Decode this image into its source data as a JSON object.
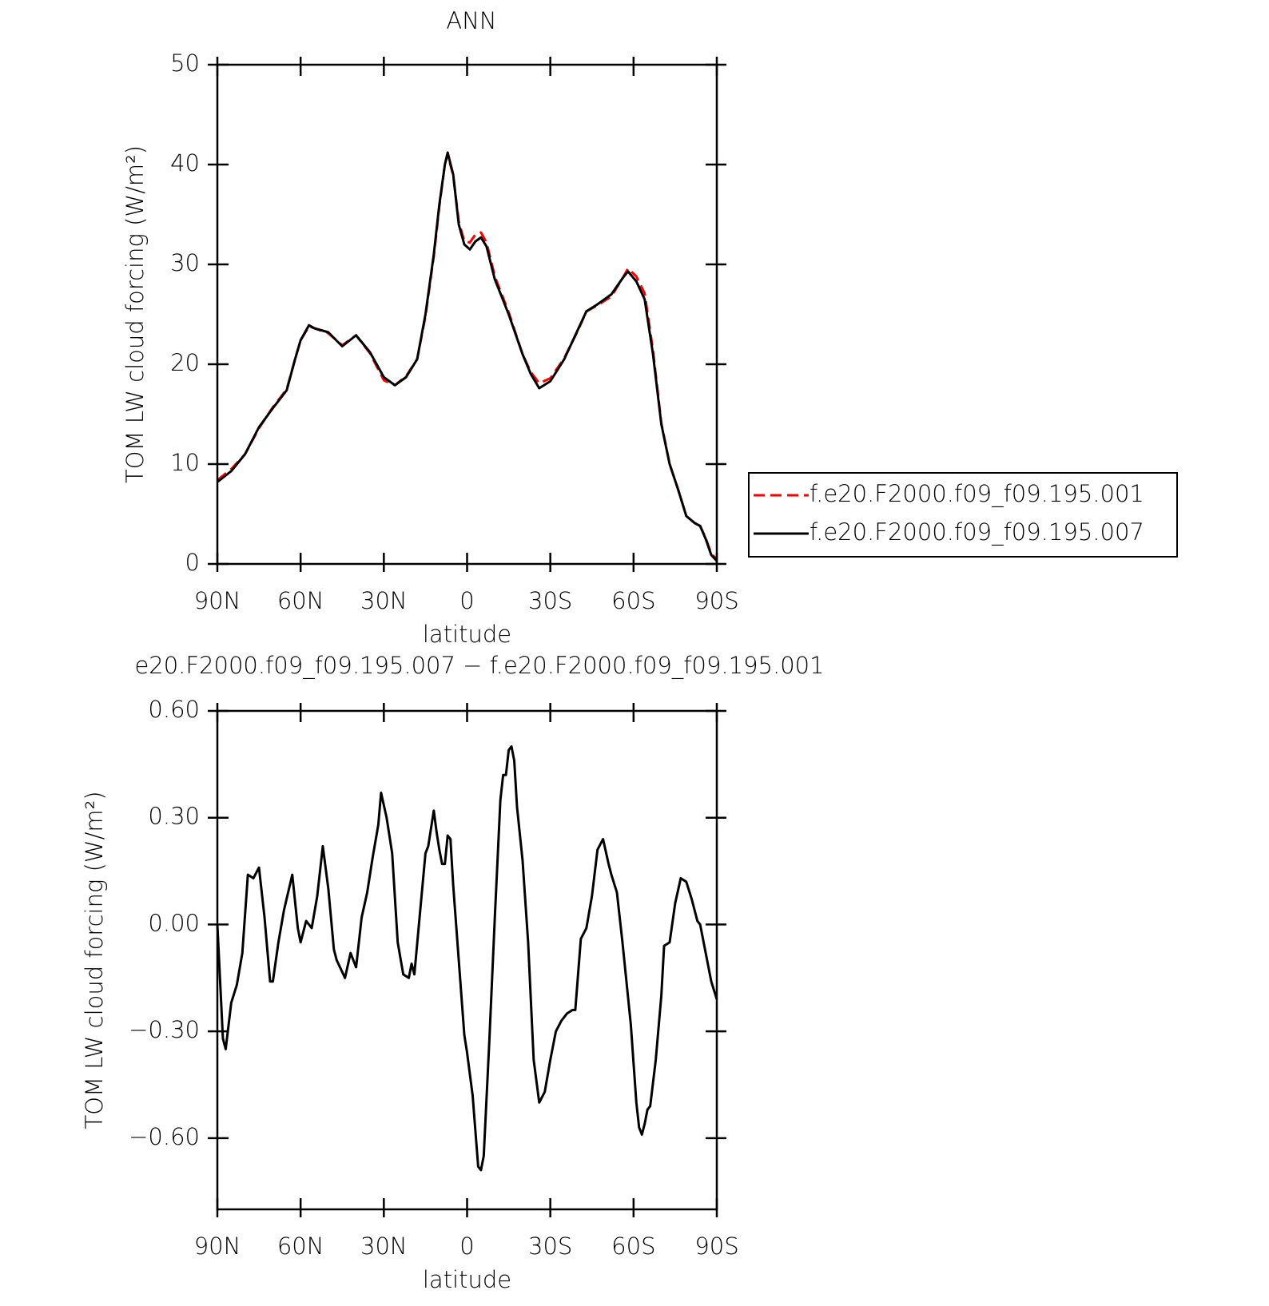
{
  "chart_data": [
    {
      "type": "line",
      "title": "ANN",
      "ylabel": "TOM LW cloud forcing (W/m²)",
      "xlabel": "latitude",
      "x": [
        90,
        85,
        80,
        75,
        70,
        65,
        62,
        60,
        57,
        55,
        50,
        45,
        40,
        35,
        30,
        26,
        22,
        18,
        15,
        12,
        10,
        8,
        7,
        5,
        3,
        1,
        -1,
        -3,
        -5,
        -7,
        -10,
        -15,
        -20,
        -23,
        -26,
        -30,
        -35,
        -40,
        -43,
        -47,
        -52,
        -56,
        -58,
        -61,
        -64,
        -67,
        -70,
        -73,
        -76,
        -79,
        -82,
        -84,
        -86,
        -88,
        -90
      ],
      "series": [
        {
          "name": "f.e20.F2000.f09_f09.195.001",
          "color": "#ff0000",
          "dashed": true,
          "values": [
            8.4,
            9.5,
            11.0,
            13.6,
            15.7,
            17.5,
            20.5,
            22.4,
            23.8,
            23.6,
            23.1,
            21.9,
            22.9,
            21.1,
            18.4,
            17.9,
            18.8,
            20.5,
            24.8,
            30.8,
            35.8,
            40,
            41.0,
            38.9,
            34.3,
            32.3,
            32.2,
            33.0,
            33.2,
            32.2,
            28.8,
            25.2,
            21,
            19.2,
            18.1,
            18.6,
            20.6,
            23.4,
            25.3,
            25.9,
            26.8,
            28.6,
            29.6,
            28.8,
            27.1,
            21.4,
            14.1,
            10,
            7.5,
            4.8,
            4.1,
            3.8,
            2.6,
            1.0,
            0.5
          ]
        },
        {
          "name": "f.e20.F2000.f09_f09.195.007",
          "color": "#000000",
          "dashed": false,
          "values": [
            8.2,
            9.3,
            11.0,
            13.7,
            15.6,
            17.4,
            20.5,
            22.4,
            23.9,
            23.6,
            23.2,
            21.8,
            22.9,
            21.2,
            18.7,
            17.9,
            18.7,
            20.5,
            25,
            31,
            36,
            40,
            41.2,
            39,
            34,
            32,
            31.5,
            32.3,
            32.7,
            31.8,
            28.5,
            25,
            21,
            19,
            17.6,
            18.3,
            20.5,
            23.5,
            25.3,
            26.0,
            27.0,
            28.6,
            29.3,
            28.3,
            26.5,
            21,
            14,
            10,
            7.5,
            4.8,
            4.1,
            3.8,
            2.5,
            0.9,
            0.3
          ]
        }
      ],
      "xlim": [
        90,
        -90
      ],
      "xticks": [
        {
          "value": 90,
          "label": "90N"
        },
        {
          "value": 60,
          "label": "60N"
        },
        {
          "value": 30,
          "label": "30N"
        },
        0,
        {
          "value": -30,
          "label": "30S"
        },
        {
          "value": -60,
          "label": "60S"
        },
        {
          "value": -90,
          "label": "90S"
        }
      ],
      "ylim": [
        0,
        50
      ],
      "yticks": [
        0,
        10,
        20,
        30,
        40,
        50
      ],
      "legend": "right"
    },
    {
      "type": "line",
      "title": "e20.F2000.f09_f09.195.007 − f.e20.F2000.f09_f09.195.001",
      "ylabel": "TOM LW cloud forcing (W/m²)",
      "xlabel": "latitude",
      "x": [
        90,
        88,
        87,
        85,
        83,
        81,
        79,
        77,
        75,
        73,
        71,
        70,
        68,
        66,
        63,
        61,
        60,
        58,
        56,
        54,
        52,
        50,
        48,
        47,
        44,
        42,
        40,
        38,
        36,
        34,
        32,
        31,
        29,
        27,
        25,
        23,
        21,
        20,
        19,
        17,
        15,
        14,
        12,
        11,
        10,
        9,
        8,
        7,
        6,
        5,
        3,
        1,
        0,
        -2,
        -4,
        -5,
        -6,
        -8,
        -10,
        -12,
        -13,
        -14,
        -15,
        -16,
        -17,
        -18,
        -20,
        -22,
        -24,
        -26,
        -28,
        -30,
        -32,
        -34,
        -36,
        -38,
        -39,
        -41,
        -43,
        -45,
        -47,
        -49,
        -51,
        -52,
        -54,
        -56,
        -59,
        -61,
        -62,
        -63,
        -64,
        -65,
        -66,
        -68,
        -70,
        -71,
        -73,
        -75,
        -77,
        -79,
        -81,
        -83,
        -84,
        -86,
        -88,
        -90
      ],
      "series": [
        {
          "color": "#000000",
          "dashed": false,
          "values": [
            0,
            -0.32,
            -0.35,
            -0.22,
            -0.17,
            -0.08,
            0.14,
            0.13,
            0.16,
            0.02,
            -0.16,
            -0.16,
            -0.05,
            0.04,
            0.14,
            -0.01,
            -0.05,
            0.01,
            -0.01,
            0.08,
            0.22,
            0.1,
            -0.07,
            -0.1,
            -0.15,
            -0.08,
            -0.12,
            0.02,
            0.09,
            0.19,
            0.28,
            0.37,
            0.3,
            0.2,
            -0.05,
            -0.14,
            -0.15,
            -0.11,
            -0.14,
            0.03,
            0.2,
            0.22,
            0.32,
            0.26,
            0.21,
            0.17,
            0.17,
            0.25,
            0.24,
            0.11,
            -0.1,
            -0.31,
            -0.36,
            -0.48,
            -0.68,
            -0.69,
            -0.65,
            -0.33,
            0.02,
            0.35,
            0.42,
            0.42,
            0.49,
            0.5,
            0.46,
            0.33,
            0.18,
            -0.05,
            -0.38,
            -0.5,
            -0.47,
            -0.38,
            -0.3,
            -0.27,
            -0.25,
            -0.24,
            -0.24,
            -0.04,
            -0.01,
            0.08,
            0.21,
            0.24,
            0.17,
            0.14,
            0.09,
            -0.05,
            -0.28,
            -0.5,
            -0.57,
            -0.59,
            -0.56,
            -0.52,
            -0.51,
            -0.38,
            -0.2,
            -0.06,
            -0.05,
            0.06,
            0.13,
            0.12,
            0.07,
            0.01,
            0,
            -0.08,
            -0.16,
            -0.21
          ]
        }
      ],
      "xlim": [
        90,
        -90
      ],
      "xticks": [
        {
          "value": 90,
          "label": "90N"
        },
        {
          "value": 60,
          "label": "60N"
        },
        {
          "value": 30,
          "label": "30N"
        },
        0,
        {
          "value": -30,
          "label": "30S"
        },
        {
          "value": -60,
          "label": "60S"
        },
        {
          "value": -90,
          "label": "90S"
        }
      ],
      "ylim": [
        -0.8,
        0.6
      ],
      "yticks": [
        {
          "value": -0.6,
          "label": "−0.60"
        },
        {
          "value": -0.3,
          "label": "−0.30"
        },
        {
          "value": 0,
          "label": "0.00"
        },
        {
          "value": 0.3,
          "label": "0.30"
        },
        {
          "value": 0.6,
          "label": "0.60"
        }
      ]
    }
  ]
}
